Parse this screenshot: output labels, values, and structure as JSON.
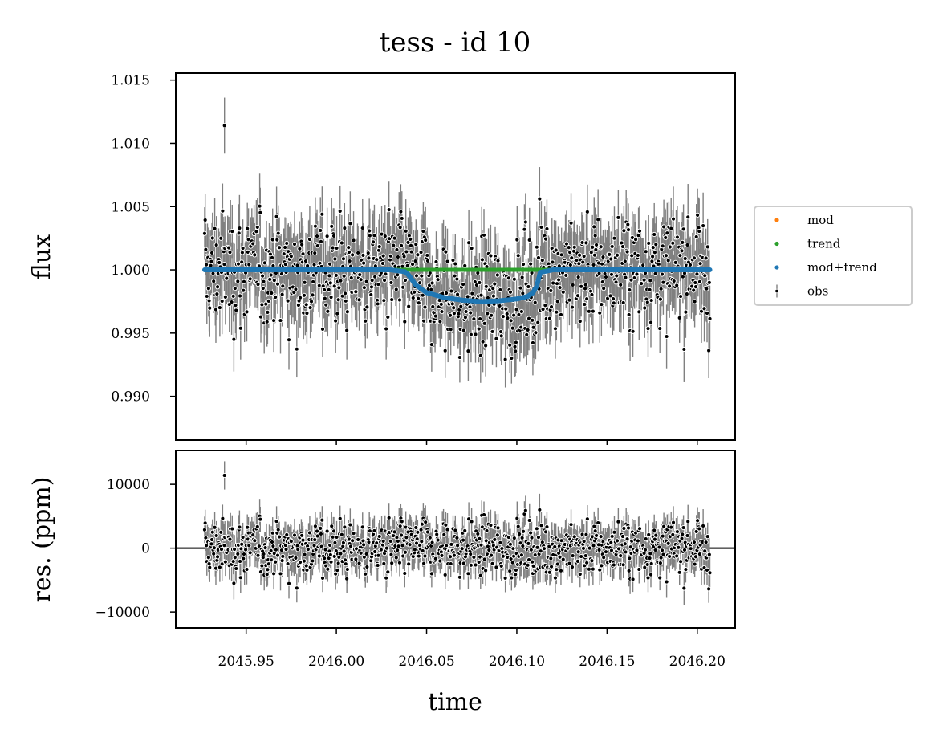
{
  "chart_data": [
    {
      "type": "scatter",
      "panel": "top",
      "title": "tess - id 10",
      "xlabel": "",
      "ylabel": "flux",
      "xlim": [
        2045.911,
        2046.221
      ],
      "ylim": [
        0.98655,
        1.01555
      ],
      "yticks": [
        0.99,
        0.995,
        1.0,
        1.005,
        1.01,
        1.015
      ],
      "ytick_labels": [
        "0.990",
        "0.995",
        "1.000",
        "1.005",
        "1.010",
        "1.015"
      ],
      "show_xtick_labels": false,
      "grid": false,
      "legend": {
        "placement": "outside-right",
        "entries": [
          {
            "label": "mod",
            "color": "#ff7f0e",
            "marker": "dot"
          },
          {
            "label": "trend",
            "color": "#2ca02c",
            "marker": "dot"
          },
          {
            "label": "mod+trend",
            "color": "#1f77b4",
            "marker": "dot"
          },
          {
            "label": "obs",
            "color": "#000000",
            "marker": "errorbar"
          }
        ]
      },
      "observations": {
        "color": "#000000",
        "errorbar_color": "#808080",
        "n_points": 900,
        "x_range": [
          2045.927,
          2046.207
        ],
        "scatter": 0.0027,
        "errorbar": 0.0023,
        "outliers": [
          [
            2045.938,
            1.0114
          ]
        ]
      },
      "series": [
        {
          "name": "trend",
          "color": "#2ca02c",
          "x": [
            2045.927,
            2046.207
          ],
          "y": [
            1.0,
            1.0
          ]
        },
        {
          "name": "mod+trend",
          "color": "#1f77b4",
          "x": [
            2045.927,
            2046.03,
            2046.038,
            2046.04,
            2046.044,
            2046.05,
            2046.06,
            2046.07,
            2046.08,
            2046.09,
            2046.1,
            2046.106,
            2046.109,
            2046.111,
            2046.113,
            2046.12,
            2046.207
          ],
          "y": [
            1.0,
            1.0,
            0.99985,
            0.9996,
            0.9988,
            0.9982,
            0.9978,
            0.9976,
            0.9975,
            0.99755,
            0.9977,
            0.9979,
            0.9982,
            0.9987,
            0.9998,
            1.0,
            1.0
          ]
        }
      ]
    },
    {
      "type": "scatter",
      "panel": "bottom",
      "xlabel": "time",
      "ylabel": "res. (ppm)",
      "xlim": [
        2045.911,
        2046.221
      ],
      "ylim": [
        -12500,
        15300
      ],
      "yticks": [
        -10000,
        0,
        10000
      ],
      "ytick_labels": [
        "−10000",
        "0",
        "10000"
      ],
      "xticks": [
        2045.95,
        2046.0,
        2046.05,
        2046.1,
        2046.15,
        2046.2
      ],
      "xtick_labels": [
        "2045.95",
        "2046.00",
        "2046.05",
        "2046.10",
        "2046.15",
        "2046.20"
      ],
      "zero_line": 0,
      "grid": false,
      "residuals": {
        "color": "#000000",
        "errorbar_color": "#808080",
        "scatter": 2700,
        "errorbar": 2300,
        "outliers": [
          [
            2045.938,
            11400
          ]
        ]
      }
    }
  ]
}
